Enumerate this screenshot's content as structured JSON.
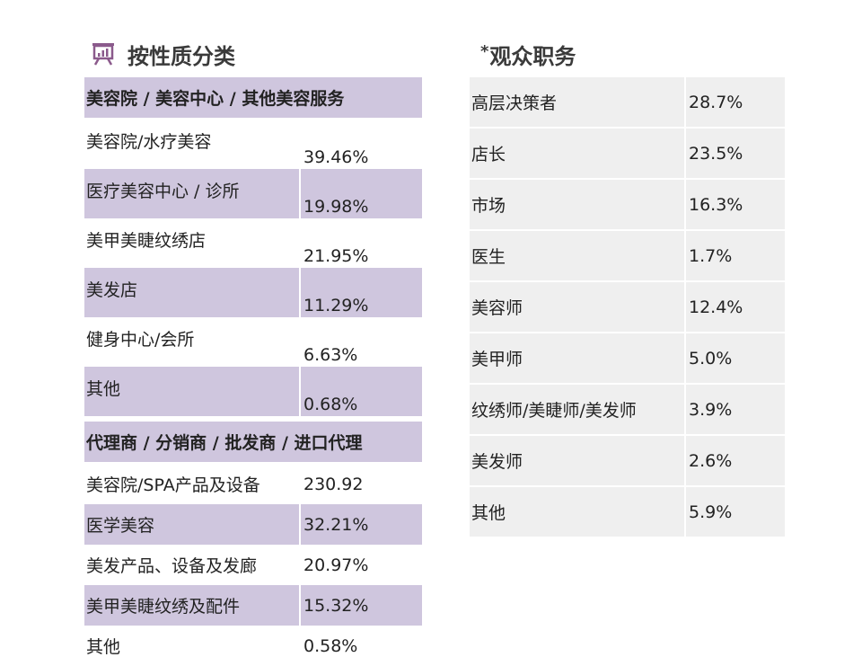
{
  "left": {
    "title": "按性质分类",
    "sections": [
      {
        "header": "美容院 / 美容中心 / 其他美容服务",
        "rows": [
          {
            "label": "美容院/水疗美容",
            "value": "39.46%"
          },
          {
            "label": "医疗美容中心 / 诊所",
            "value": "19.98%"
          },
          {
            "label": "美甲美睫纹绣店",
            "value": "21.95%"
          },
          {
            "label": "美发店",
            "value": "11.29%"
          },
          {
            "label": "健身中心/会所",
            "value": "6.63%"
          },
          {
            "label": "其他",
            "value": "0.68%"
          }
        ]
      },
      {
        "header": "代理商 / 分销商 / 批发商 / 进口代理",
        "rows": [
          {
            "label": "美容院/SPA产品及设备",
            "value": "230.92"
          },
          {
            "label": "医学美容",
            "value": "32.21%"
          },
          {
            "label": "美发产品、设备及发廊",
            "value": "20.97%"
          },
          {
            "label": "美甲美睫纹绣及配件",
            "value": "15.32%"
          },
          {
            "label": "其他",
            "value": "0.58%"
          }
        ]
      }
    ]
  },
  "right": {
    "title_prefix": "*",
    "title": "观众职务",
    "rows": [
      {
        "label": "高层决策者",
        "value": "28.7%"
      },
      {
        "label": "店长",
        "value": "23.5%"
      },
      {
        "label": "市场",
        "value": "16.3%"
      },
      {
        "label": "医生",
        "value": "1.7%"
      },
      {
        "label": "美容师",
        "value": "12.4%"
      },
      {
        "label": "美甲师",
        "value": "5.0%"
      },
      {
        "label": "纹绣师/美睫师/美发师",
        "value": "3.9%"
      },
      {
        "label": "美发师",
        "value": "2.6%"
      },
      {
        "label": "其他",
        "value": "5.9%"
      }
    ]
  },
  "colors": {
    "accent": "#8b5a8c",
    "band": "#cfc6de",
    "gray": "#efefef"
  },
  "icons": {
    "heading": "presentation-board-icon"
  }
}
